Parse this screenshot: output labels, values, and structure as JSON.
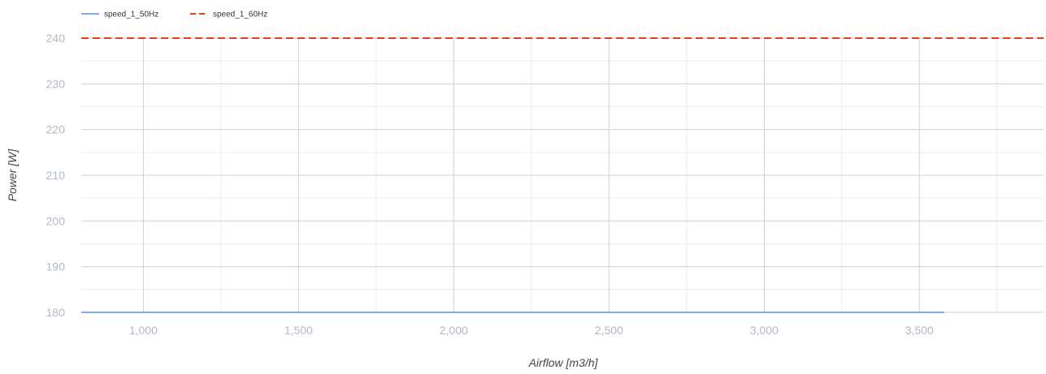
{
  "chart_data": {
    "type": "line",
    "title": "",
    "xlabel": "Airflow [m3/h]",
    "ylabel": "Power [W]",
    "xlim": [
      800,
      3900
    ],
    "ylim": [
      180,
      240
    ],
    "x_ticks": [
      1000,
      1500,
      2000,
      2500,
      3000,
      3500
    ],
    "x_tick_labels": [
      "1,000",
      "1,500",
      "2,000",
      "2,500",
      "3,000",
      "3,500"
    ],
    "y_ticks": [
      180,
      190,
      200,
      210,
      220,
      230,
      240
    ],
    "y_tick_labels": [
      "180",
      "190",
      "200",
      "210",
      "220",
      "230",
      "240"
    ],
    "grid": true,
    "legend_position": "top-left",
    "series": [
      {
        "name": "speed_1_50Hz",
        "color": "#5b8fd9",
        "dash": "solid",
        "x": [
          800,
          3580
        ],
        "y": [
          180,
          180
        ]
      },
      {
        "name": "speed_1_60Hz",
        "color": "#e0411f",
        "dash": "dashed",
        "x": [
          800,
          3900
        ],
        "y": [
          240,
          240
        ]
      }
    ]
  }
}
